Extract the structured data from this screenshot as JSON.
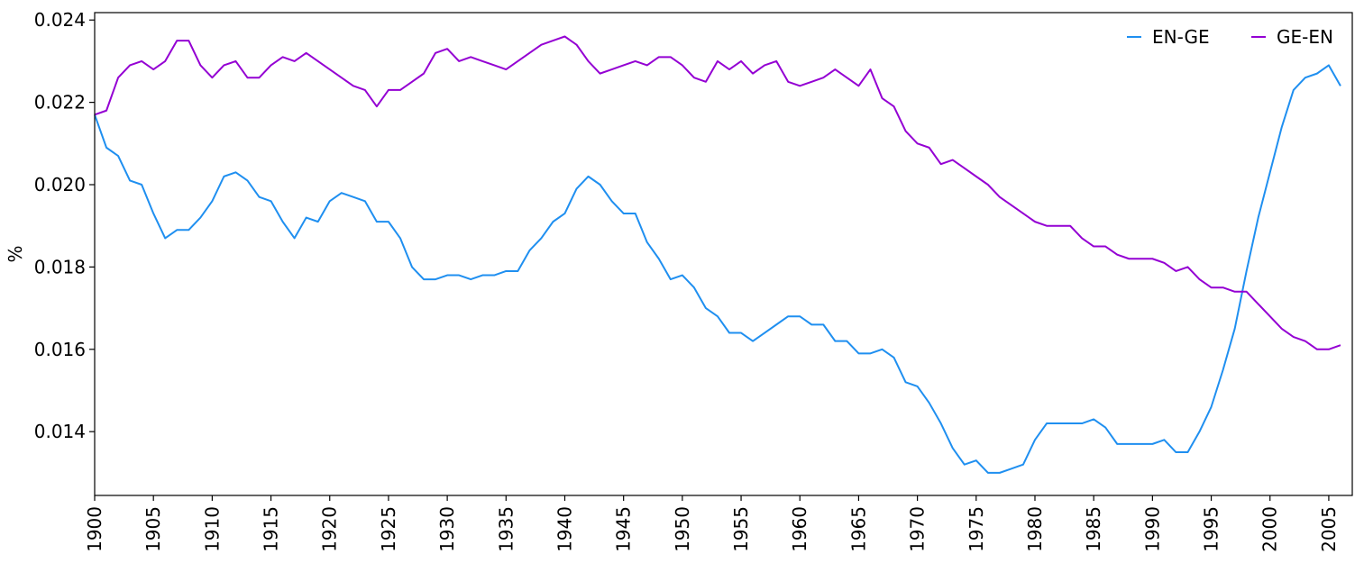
{
  "chart_data": {
    "type": "line",
    "title": "",
    "xlabel": "",
    "ylabel": "%",
    "xlim": [
      1900,
      2007
    ],
    "ylim": [
      0.01245,
      0.02418
    ],
    "x_ticks": [
      1900,
      1905,
      1910,
      1915,
      1920,
      1925,
      1930,
      1935,
      1940,
      1945,
      1950,
      1955,
      1960,
      1965,
      1970,
      1975,
      1980,
      1985,
      1990,
      1995,
      2000,
      2005
    ],
    "y_ticks": [
      0.014,
      0.016,
      0.018,
      0.02,
      0.022,
      0.024
    ],
    "y_tick_labels": [
      "0.014",
      "0.016",
      "0.018",
      "0.020",
      "0.022",
      "0.024"
    ],
    "grid": false,
    "legend_position": "top-right",
    "x": [
      1900,
      1901,
      1902,
      1903,
      1904,
      1905,
      1906,
      1907,
      1908,
      1909,
      1910,
      1911,
      1912,
      1913,
      1914,
      1915,
      1916,
      1917,
      1918,
      1919,
      1920,
      1921,
      1922,
      1923,
      1924,
      1925,
      1926,
      1927,
      1928,
      1929,
      1930,
      1931,
      1932,
      1933,
      1934,
      1935,
      1936,
      1937,
      1938,
      1939,
      1940,
      1941,
      1942,
      1943,
      1944,
      1945,
      1946,
      1947,
      1948,
      1949,
      1950,
      1951,
      1952,
      1953,
      1954,
      1955,
      1956,
      1957,
      1958,
      1959,
      1960,
      1961,
      1962,
      1963,
      1964,
      1965,
      1966,
      1967,
      1968,
      1969,
      1970,
      1971,
      1972,
      1973,
      1974,
      1975,
      1976,
      1977,
      1978,
      1979,
      1980,
      1981,
      1982,
      1983,
      1984,
      1985,
      1986,
      1987,
      1988,
      1989,
      1990,
      1991,
      1992,
      1993,
      1994,
      1995,
      1996,
      1997,
      1998,
      1999,
      2000,
      2001,
      2002,
      2003,
      2004,
      2005,
      2006
    ],
    "series": [
      {
        "name": "EN-GE",
        "color": "#1f8ff0",
        "values": [
          0.0217,
          0.0209,
          0.0207,
          0.0201,
          0.02,
          0.0193,
          0.0187,
          0.0189,
          0.0189,
          0.0192,
          0.0196,
          0.0202,
          0.0203,
          0.0201,
          0.0197,
          0.0196,
          0.0191,
          0.0187,
          0.0192,
          0.0191,
          0.0196,
          0.0198,
          0.0197,
          0.0196,
          0.0191,
          0.0191,
          0.0187,
          0.018,
          0.0177,
          0.0177,
          0.0178,
          0.0178,
          0.0177,
          0.0178,
          0.0178,
          0.0179,
          0.0179,
          0.0184,
          0.0187,
          0.0191,
          0.0193,
          0.0199,
          0.0202,
          0.02,
          0.0196,
          0.0193,
          0.0193,
          0.0186,
          0.0182,
          0.0177,
          0.0178,
          0.0175,
          0.017,
          0.0168,
          0.0164,
          0.0164,
          0.0162,
          0.0164,
          0.0166,
          0.0168,
          0.0168,
          0.0166,
          0.0166,
          0.0162,
          0.0162,
          0.0159,
          0.0159,
          0.016,
          0.0158,
          0.0152,
          0.0151,
          0.0147,
          0.0142,
          0.0136,
          0.0132,
          0.0133,
          0.013,
          0.013,
          0.0131,
          0.0132,
          0.0138,
          0.0142,
          0.0142,
          0.0142,
          0.0142,
          0.0143,
          0.0141,
          0.0137,
          0.0137,
          0.0137,
          0.0137,
          0.0138,
          0.0135,
          0.0135,
          0.014,
          0.0146,
          0.0155,
          0.0165,
          0.0179,
          0.0192,
          0.0203,
          0.0214,
          0.0223,
          0.0226,
          0.0227,
          0.0229,
          0.0224
        ]
      },
      {
        "name": "GE-EN",
        "color": "#9400d3",
        "values": [
          0.0217,
          0.0218,
          0.0226,
          0.0229,
          0.023,
          0.0228,
          0.023,
          0.0235,
          0.0235,
          0.0229,
          0.0226,
          0.0229,
          0.023,
          0.0226,
          0.0226,
          0.0229,
          0.0231,
          0.023,
          0.0232,
          0.023,
          0.0228,
          0.0226,
          0.0224,
          0.0223,
          0.0219,
          0.0223,
          0.0223,
          0.0225,
          0.0227,
          0.0232,
          0.0233,
          0.023,
          0.0231,
          0.023,
          0.0229,
          0.0228,
          0.023,
          0.0232,
          0.0234,
          0.0235,
          0.0236,
          0.0234,
          0.023,
          0.0227,
          0.0228,
          0.0229,
          0.023,
          0.0229,
          0.0231,
          0.0231,
          0.0229,
          0.0226,
          0.0225,
          0.023,
          0.0228,
          0.023,
          0.0227,
          0.0229,
          0.023,
          0.0225,
          0.0224,
          0.0225,
          0.0226,
          0.0228,
          0.0226,
          0.0224,
          0.0228,
          0.0221,
          0.0219,
          0.0213,
          0.021,
          0.0209,
          0.0205,
          0.0206,
          0.0204,
          0.0202,
          0.02,
          0.0197,
          0.0195,
          0.0193,
          0.0191,
          0.019,
          0.019,
          0.019,
          0.0187,
          0.0185,
          0.0185,
          0.0183,
          0.0182,
          0.0182,
          0.0182,
          0.0181,
          0.0179,
          0.018,
          0.0177,
          0.0175,
          0.0175,
          0.0174,
          0.0174,
          0.0171,
          0.0168,
          0.0165,
          0.0163,
          0.0162,
          0.016,
          0.016,
          0.0161
        ]
      }
    ]
  }
}
